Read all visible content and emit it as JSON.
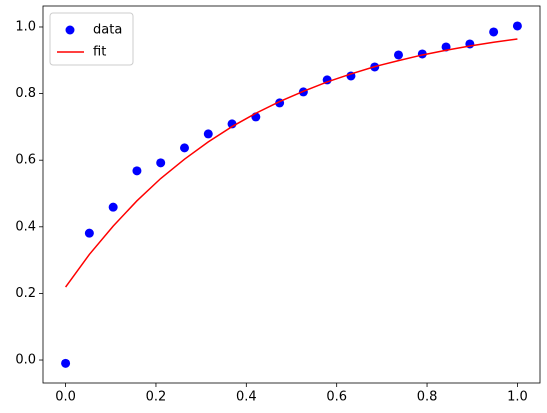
{
  "chart_data": {
    "type": "scatter",
    "x": [
      0,
      0.0526,
      0.1053,
      0.1579,
      0.2105,
      0.2632,
      0.3158,
      0.3684,
      0.4211,
      0.4737,
      0.5263,
      0.5789,
      0.6316,
      0.6842,
      0.7368,
      0.7895,
      0.8421,
      0.8947,
      0.9474,
      1
    ],
    "series": [
      {
        "name": "data",
        "type": "scatter",
        "color": "#0000ff",
        "values": [
          -0.01,
          0.381,
          0.459,
          0.568,
          0.592,
          0.637,
          0.679,
          0.709,
          0.73,
          0.772,
          0.805,
          0.841,
          0.853,
          0.88,
          0.916,
          0.919,
          0.94,
          0.949,
          0.985,
          1.003
        ]
      },
      {
        "name": "fit",
        "type": "line",
        "color": "#ff0000",
        "values": [
          0.219,
          0.317,
          0.402,
          0.478,
          0.545,
          0.603,
          0.655,
          0.701,
          0.741,
          0.776,
          0.807,
          0.835,
          0.859,
          0.881,
          0.899,
          0.916,
          0.93,
          0.943,
          0.954,
          0.964
        ]
      }
    ],
    "xlim": [
      -0.05,
      1.05
    ],
    "ylim": [
      -0.069,
      1.063
    ],
    "xticks": [
      {
        "value": 0,
        "label": "0.0"
      },
      {
        "value": 0.2,
        "label": "0.2"
      },
      {
        "value": 0.4,
        "label": "0.4"
      },
      {
        "value": 0.6,
        "label": "0.6"
      },
      {
        "value": 0.8,
        "label": "0.8"
      },
      {
        "value": 1,
        "label": "1.0"
      }
    ],
    "yticks": [
      {
        "value": 0,
        "label": "0.0"
      },
      {
        "value": 0.2,
        "label": "0.2"
      },
      {
        "value": 0.4,
        "label": "0.4"
      },
      {
        "value": 0.6,
        "label": "0.6"
      },
      {
        "value": 0.8,
        "label": "0.8"
      },
      {
        "value": 1,
        "label": "1.0"
      }
    ],
    "grid": false,
    "legend": "upper left"
  }
}
